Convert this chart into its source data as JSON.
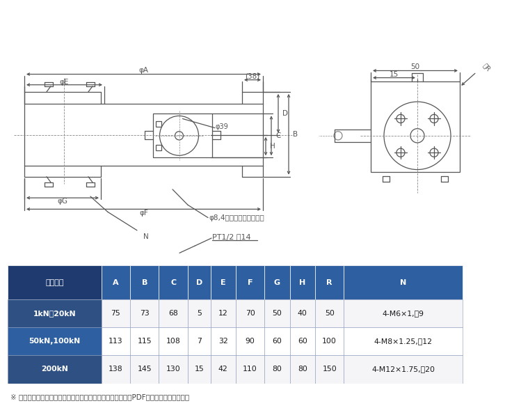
{
  "bg_color": "#ffffff",
  "dc": "#555555",
  "lc": "#888888",
  "table_header_dark": "#1e3a6e",
  "table_header_med": "#2e5fa0",
  "table_row_dark_bg": "#2e5082",
  "table_row_light_bg": "#f0f0f5",
  "table_border": "#aaaacc",
  "table_header_labels": [
    "定格容量",
    "A",
    "B",
    "C",
    "D",
    "E",
    "F",
    "G",
    "H",
    "R",
    "N"
  ],
  "table_rows": [
    [
      "1kN～20kN",
      "75",
      "73",
      "68",
      "5",
      "12",
      "70",
      "50",
      "40",
      "50",
      "4-M6×1,淹9"
    ],
    [
      "50kN,100kN",
      "113",
      "115",
      "108",
      "7",
      "32",
      "90",
      "60",
      "60",
      "100",
      "4-M8×1.25,淹12"
    ],
    [
      "200kN",
      "138",
      "145",
      "130",
      "15",
      "42",
      "110",
      "80",
      "80",
      "150",
      "4-M12×1.75,淹20"
    ]
  ],
  "footnote": "※ 上記の「定格容量」の容量をクリックして頂くと容量別にPDFで図が表示されます。"
}
